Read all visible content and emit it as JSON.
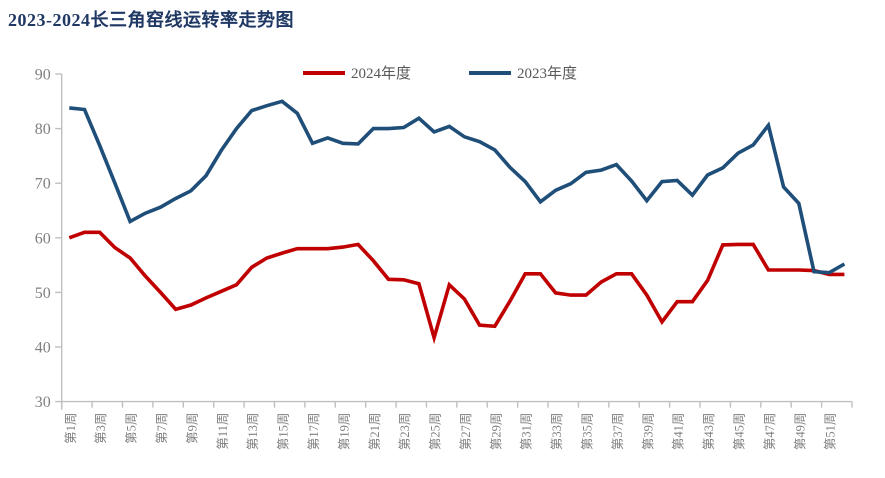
{
  "title": "2023-2024长三角窑线运转率走势图",
  "title_color": "#1F3864",
  "legend": [
    {
      "label": "2024年度",
      "color": "#C00000"
    },
    {
      "label": "2023年度",
      "color": "#1F4E79"
    }
  ],
  "axis": {
    "line_color": "#BFBFBF",
    "label_color": "#808080"
  },
  "chart_data": {
    "type": "line",
    "title": "2023-2024长三角窑线运转率走势图",
    "xlabel": "",
    "ylabel": "",
    "ylim": [
      30,
      90
    ],
    "y_ticks": [
      30,
      40,
      50,
      60,
      70,
      80,
      90
    ],
    "grid": false,
    "legend_position": "top",
    "x_unit": "week",
    "weeks": 52,
    "x_tick_step": 2,
    "x_tick_labels": [
      "第1周",
      "第3周",
      "第5周",
      "第7周",
      "第9周",
      "第11周",
      "第13周",
      "第15周",
      "第17周",
      "第19周",
      "第21周",
      "第23周",
      "第25周",
      "第27周",
      "第29周",
      "第31周",
      "第33周",
      "第35周",
      "第37周",
      "第39周",
      "第41周",
      "第43周",
      "第45周",
      "第47周",
      "第49周",
      "第51周"
    ],
    "series": [
      {
        "name": "2024年度",
        "color": "#C00000",
        "values": [
          60,
          61,
          61,
          58.2,
          56.3,
          53,
          50,
          46.9,
          47.7,
          49,
          50.2,
          51.4,
          54.6,
          56.3,
          57.2,
          58,
          58,
          58,
          58.3,
          58.8,
          55.8,
          52.4,
          52.3,
          51.6,
          41.7,
          51.4,
          48.8,
          44,
          43.8,
          48.4,
          53.4,
          53.4,
          49.9,
          49.5,
          49.5,
          51.9,
          53.4,
          53.4,
          49.5,
          44.6,
          48.3,
          48.3,
          52.2,
          58.7,
          58.8,
          58.8,
          54.1,
          54.1,
          54.1,
          54,
          53.3,
          53.3
        ]
      },
      {
        "name": "2023年度",
        "color": "#1F4E79",
        "values": [
          83.8,
          83.5,
          76.9,
          70,
          63,
          64.5,
          65.6,
          67.2,
          68.6,
          71.4,
          76,
          80,
          83.3,
          84.2,
          85,
          82.8,
          77.3,
          78.3,
          77.3,
          77.2,
          80,
          80,
          80.2,
          81.9,
          79.4,
          80.4,
          78.5,
          77.6,
          76.1,
          72.9,
          70.3,
          66.6,
          68.7,
          69.9,
          72,
          72.4,
          73.4,
          70.4,
          66.8,
          70.3,
          70.5,
          67.8,
          71.5,
          72.8,
          75.5,
          77,
          80.6,
          69.3,
          66.3,
          53.8,
          53.6,
          55.2
        ]
      }
    ]
  }
}
